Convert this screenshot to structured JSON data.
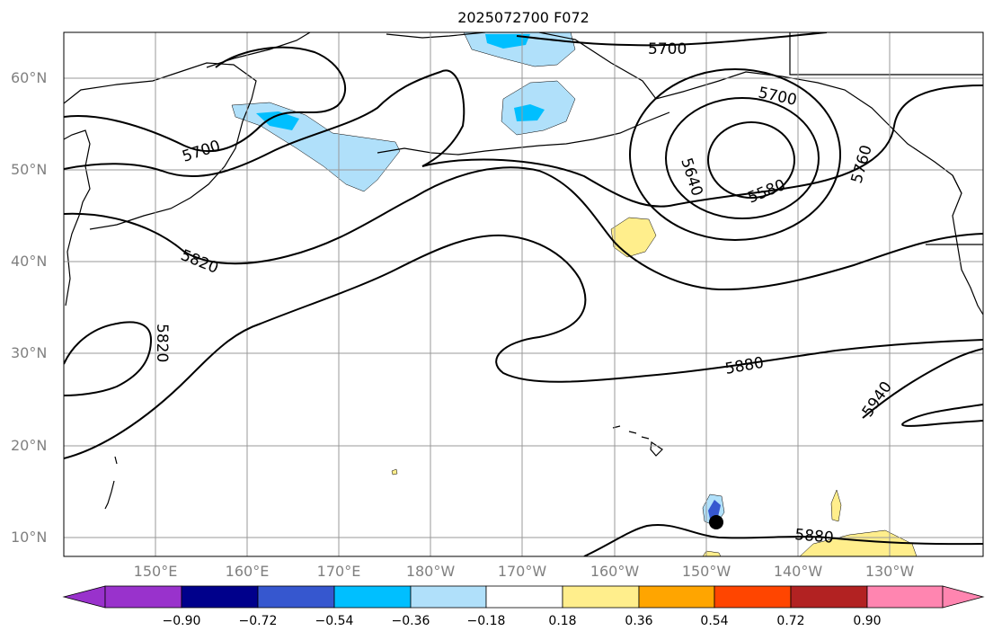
{
  "title": "2025072700 F072",
  "lat_labels": [
    "60°N",
    "50°N",
    "40°N",
    "30°N",
    "20°N",
    "10°N"
  ],
  "lon_labels": [
    "150°E",
    "160°E",
    "170°E",
    "180°W",
    "170°W",
    "160°W",
    "150°W",
    "140°W",
    "130°W"
  ],
  "contour_labels": {
    "a": "5700",
    "b": "5700",
    "c": "5700",
    "d": "5580",
    "e": "5640",
    "f": "5760",
    "g": "5820",
    "h": "5820",
    "i": "5880",
    "j": "5880",
    "k": "5940"
  },
  "colorbar": {
    "labels": [
      "−0.90",
      "−0.72",
      "−0.54",
      "−0.36",
      "−0.18",
      "0.18",
      "0.36",
      "0.54",
      "0.72",
      "0.90"
    ],
    "colors": [
      "#9932cc",
      "#00008b",
      "#3657cf",
      "#00bfff",
      "#b0e0fa",
      "#ffffff",
      "#ffee8c",
      "#ffa500",
      "#ff4500",
      "#b22222",
      "#ff85b0"
    ]
  }
}
